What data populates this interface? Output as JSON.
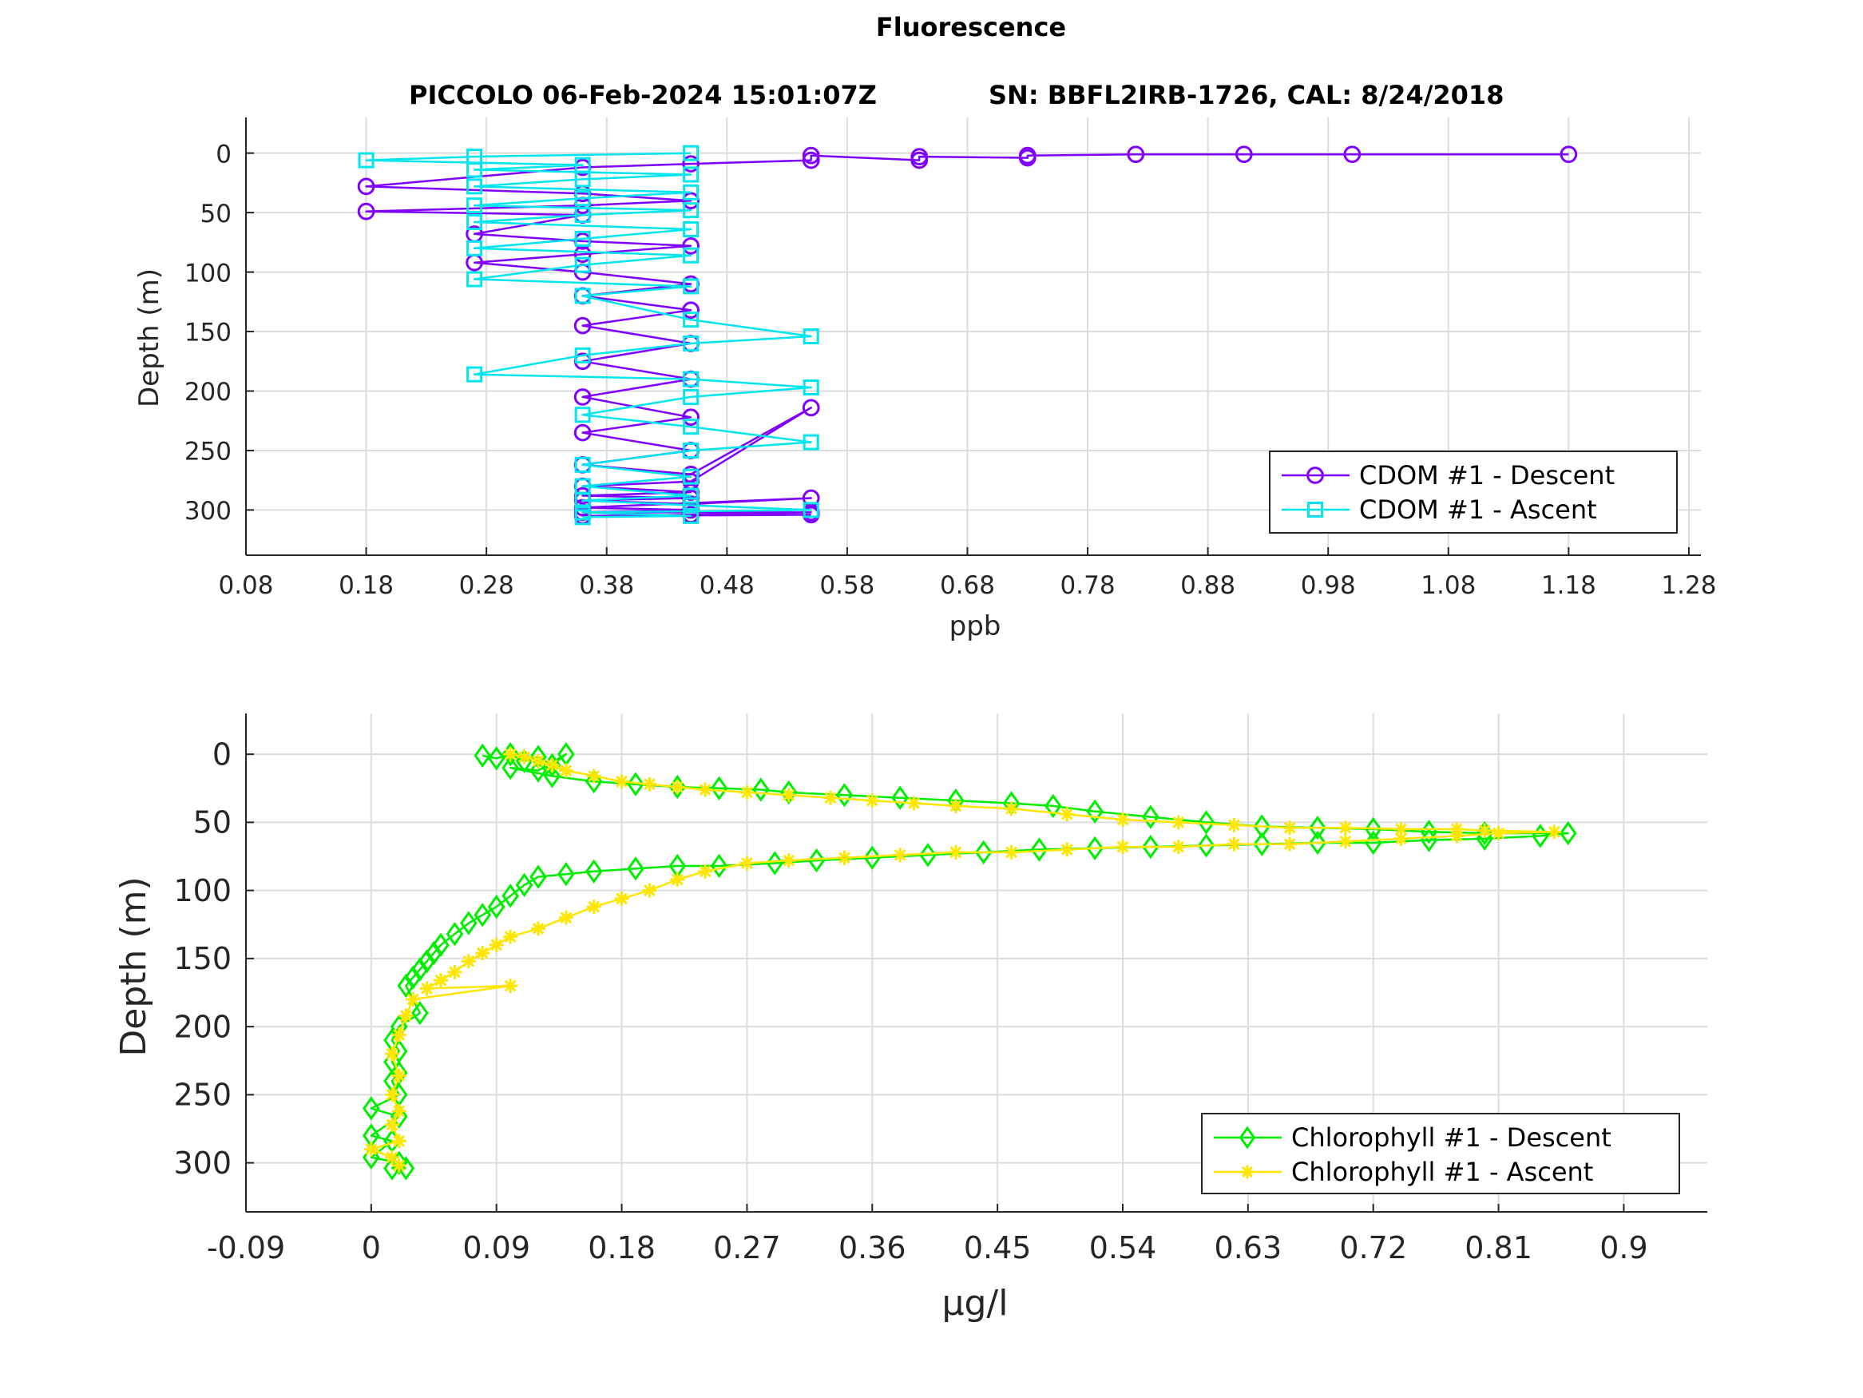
{
  "figure": {
    "suptitle": "Fluorescence",
    "subtitle_left": "PICCOLO 06-Feb-2024 15:01:07Z",
    "subtitle_right": "SN: BBFL2IRB-1726, CAL: 8/24/2018"
  },
  "chart_data": [
    {
      "type": "line",
      "xlabel": "ppb",
      "ylabel": "Depth (m)",
      "xlim": [
        0.08,
        1.29
      ],
      "ylim": [
        -30,
        338
      ],
      "y_reversed": true,
      "grid": true,
      "legend_position": "bottom-right",
      "xticks": [
        "0.08",
        "0.18",
        "0.28",
        "0.38",
        "0.48",
        "0.58",
        "0.68",
        "0.78",
        "0.88",
        "0.98",
        "1.08",
        "1.18",
        "1.28"
      ],
      "yticks": [
        "0",
        "50",
        "100",
        "150",
        "200",
        "250",
        "300"
      ],
      "series": [
        {
          "name": "CDOM #1 - Descent",
          "color": "#7f00ff",
          "marker": "circle",
          "x": [
            1.18,
            1.0,
            0.91,
            0.82,
            0.73,
            0.73,
            0.64,
            0.64,
            0.55,
            0.55,
            0.45,
            0.36,
            0.18,
            0.36,
            0.45,
            0.36,
            0.18,
            0.36,
            0.27,
            0.36,
            0.45,
            0.36,
            0.27,
            0.36,
            0.45,
            0.36,
            0.45,
            0.36,
            0.45,
            0.36,
            0.45,
            0.36,
            0.45,
            0.36,
            0.45,
            0.36,
            0.45,
            0.55,
            0.45,
            0.36,
            0.45,
            0.36,
            0.45,
            0.36,
            0.45,
            0.55,
            0.36,
            0.45,
            0.36,
            0.55,
            0.45,
            0.36,
            0.55
          ],
          "y": [
            1,
            1,
            1,
            1,
            2,
            4,
            3,
            6,
            2,
            6,
            9,
            12,
            28,
            34,
            40,
            44,
            49,
            52,
            68,
            74,
            78,
            85,
            92,
            100,
            110,
            120,
            132,
            145,
            160,
            175,
            190,
            205,
            222,
            235,
            250,
            262,
            270,
            214,
            276,
            280,
            285,
            288,
            290,
            292,
            295,
            290,
            298,
            300,
            302,
            302,
            304,
            305,
            304
          ]
        },
        {
          "name": "CDOM #1 - Ascent",
          "color": "#00e5ee",
          "marker": "square",
          "x": [
            0.45,
            0.27,
            0.18,
            0.36,
            0.27,
            0.45,
            0.36,
            0.27,
            0.45,
            0.36,
            0.27,
            0.45,
            0.36,
            0.27,
            0.45,
            0.36,
            0.27,
            0.45,
            0.36,
            0.27,
            0.45,
            0.36,
            0.45,
            0.55,
            0.45,
            0.36,
            0.27,
            0.45,
            0.55,
            0.45,
            0.36,
            0.45,
            0.55,
            0.45,
            0.36,
            0.45,
            0.36,
            0.45,
            0.36,
            0.45,
            0.55,
            0.36,
            0.45,
            0.36
          ],
          "y": [
            0,
            3,
            6,
            10,
            14,
            18,
            22,
            28,
            33,
            38,
            44,
            48,
            52,
            58,
            64,
            72,
            80,
            86,
            94,
            106,
            112,
            120,
            140,
            154,
            160,
            170,
            186,
            190,
            197,
            205,
            220,
            230,
            243,
            250,
            262,
            272,
            280,
            288,
            292,
            296,
            300,
            302,
            305,
            306
          ]
        }
      ]
    },
    {
      "type": "line",
      "xlabel": "μg/l",
      "ylabel": "Depth (m)",
      "xlim": [
        -0.09,
        0.96
      ],
      "ylim": [
        -30,
        336
      ],
      "y_reversed": true,
      "grid": true,
      "legend_position": "bottom-right",
      "xticks": [
        "-0.09",
        "0",
        "0.09",
        "0.18",
        "0.27",
        "0.36",
        "0.45",
        "0.54",
        "0.63",
        "0.72",
        "0.81",
        "0.9"
      ],
      "yticks": [
        "0",
        "50",
        "100",
        "150",
        "200",
        "250",
        "300"
      ],
      "series": [
        {
          "name": "Chlorophyll #1 - Descent",
          "color": "#00ee00",
          "marker": "diamond",
          "x": [
            0.08,
            0.09,
            0.1,
            0.11,
            0.12,
            0.13,
            0.14,
            0.12,
            0.1,
            0.13,
            0.16,
            0.19,
            0.22,
            0.25,
            0.28,
            0.3,
            0.34,
            0.38,
            0.42,
            0.46,
            0.49,
            0.52,
            0.56,
            0.6,
            0.64,
            0.68,
            0.72,
            0.76,
            0.8,
            0.86,
            0.84,
            0.8,
            0.76,
            0.72,
            0.68,
            0.64,
            0.6,
            0.56,
            0.52,
            0.48,
            0.44,
            0.4,
            0.36,
            0.32,
            0.29,
            0.25,
            0.22,
            0.19,
            0.16,
            0.14,
            0.12,
            0.11,
            0.1,
            0.09,
            0.08,
            0.07,
            0.06,
            0.05,
            0.045,
            0.04,
            0.035,
            0.03,
            0.025,
            0.035,
            0.02,
            0.015,
            0.02,
            0.015,
            0.02,
            0.015,
            0.02,
            0.0,
            0.02,
            0.0,
            0.015,
            0.0,
            0.02,
            0.015,
            0.025
          ],
          "y": [
            1,
            3,
            0,
            5,
            2,
            8,
            0,
            12,
            10,
            16,
            20,
            22,
            24,
            25,
            26,
            28,
            30,
            32,
            34,
            36,
            38,
            42,
            46,
            50,
            53,
            54,
            55,
            57,
            58,
            58,
            60,
            62,
            63,
            65,
            65,
            66,
            67,
            68,
            69,
            70,
            72,
            74,
            76,
            78,
            80,
            82,
            82,
            84,
            86,
            88,
            90,
            96,
            104,
            112,
            118,
            124,
            132,
            140,
            146,
            152,
            158,
            164,
            170,
            190,
            200,
            210,
            218,
            226,
            234,
            240,
            250,
            260,
            266,
            280,
            284,
            296,
            300,
            304,
            304
          ]
        },
        {
          "name": "Chlorophyll #1 - Ascent",
          "color": "#ffe600",
          "marker": "asterisk",
          "x": [
            0.1,
            0.11,
            0.12,
            0.13,
            0.14,
            0.16,
            0.18,
            0.2,
            0.22,
            0.24,
            0.27,
            0.3,
            0.33,
            0.36,
            0.39,
            0.42,
            0.46,
            0.5,
            0.54,
            0.58,
            0.62,
            0.66,
            0.7,
            0.74,
            0.78,
            0.8,
            0.85,
            0.81,
            0.78,
            0.74,
            0.7,
            0.66,
            0.62,
            0.58,
            0.54,
            0.5,
            0.46,
            0.42,
            0.38,
            0.34,
            0.3,
            0.27,
            0.24,
            0.22,
            0.2,
            0.18,
            0.16,
            0.14,
            0.12,
            0.1,
            0.09,
            0.08,
            0.07,
            0.06,
            0.05,
            0.04,
            0.1,
            0.03,
            0.025,
            0.02,
            0.015,
            0.02,
            0.015,
            0.02,
            0.015,
            0.02,
            0.0,
            0.015,
            0.02
          ],
          "y": [
            0,
            2,
            5,
            8,
            12,
            16,
            20,
            22,
            24,
            26,
            28,
            30,
            32,
            34,
            36,
            38,
            40,
            44,
            48,
            50,
            52,
            54,
            54,
            55,
            55,
            56,
            57,
            58,
            60,
            62,
            64,
            66,
            66,
            68,
            68,
            70,
            72,
            72,
            74,
            76,
            78,
            80,
            86,
            92,
            100,
            106,
            112,
            120,
            128,
            134,
            140,
            146,
            152,
            160,
            166,
            172,
            170,
            180,
            192,
            206,
            220,
            236,
            250,
            262,
            272,
            284,
            290,
            296,
            302
          ]
        }
      ]
    }
  ]
}
